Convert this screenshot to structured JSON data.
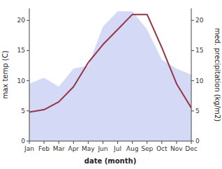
{
  "chart_data": {
    "type": "line",
    "xlabel": "date (month)",
    "ylabel": "max temp (C)",
    "y2label": "med. precipitation (kg/m2)",
    "categories": [
      "Jan",
      "Feb",
      "Mar",
      "Apr",
      "May",
      "Jun",
      "Jul",
      "Aug",
      "Sep",
      "Oct",
      "Nov",
      "Dec"
    ],
    "series": [
      {
        "type": "area",
        "axis": "y2",
        "color": "#b0baee",
        "values": [
          9.5,
          10.5,
          9.0,
          12.0,
          12.5,
          19.0,
          21.5,
          21.5,
          18.5,
          13.5,
          12.0,
          11.0
        ]
      },
      {
        "type": "line",
        "color": "#993344",
        "values": [
          4.8,
          5.2,
          6.5,
          9.0,
          13.0,
          16.0,
          18.5,
          21.0,
          21.0,
          15.5,
          9.5,
          5.5
        ]
      }
    ],
    "ylim": [
      0,
      22
    ],
    "yticks": [
      0,
      5,
      10,
      15,
      20
    ],
    "y2lim": [
      0,
      22
    ],
    "y2ticks": [
      0,
      5,
      10,
      15,
      20
    ],
    "grid": false
  }
}
